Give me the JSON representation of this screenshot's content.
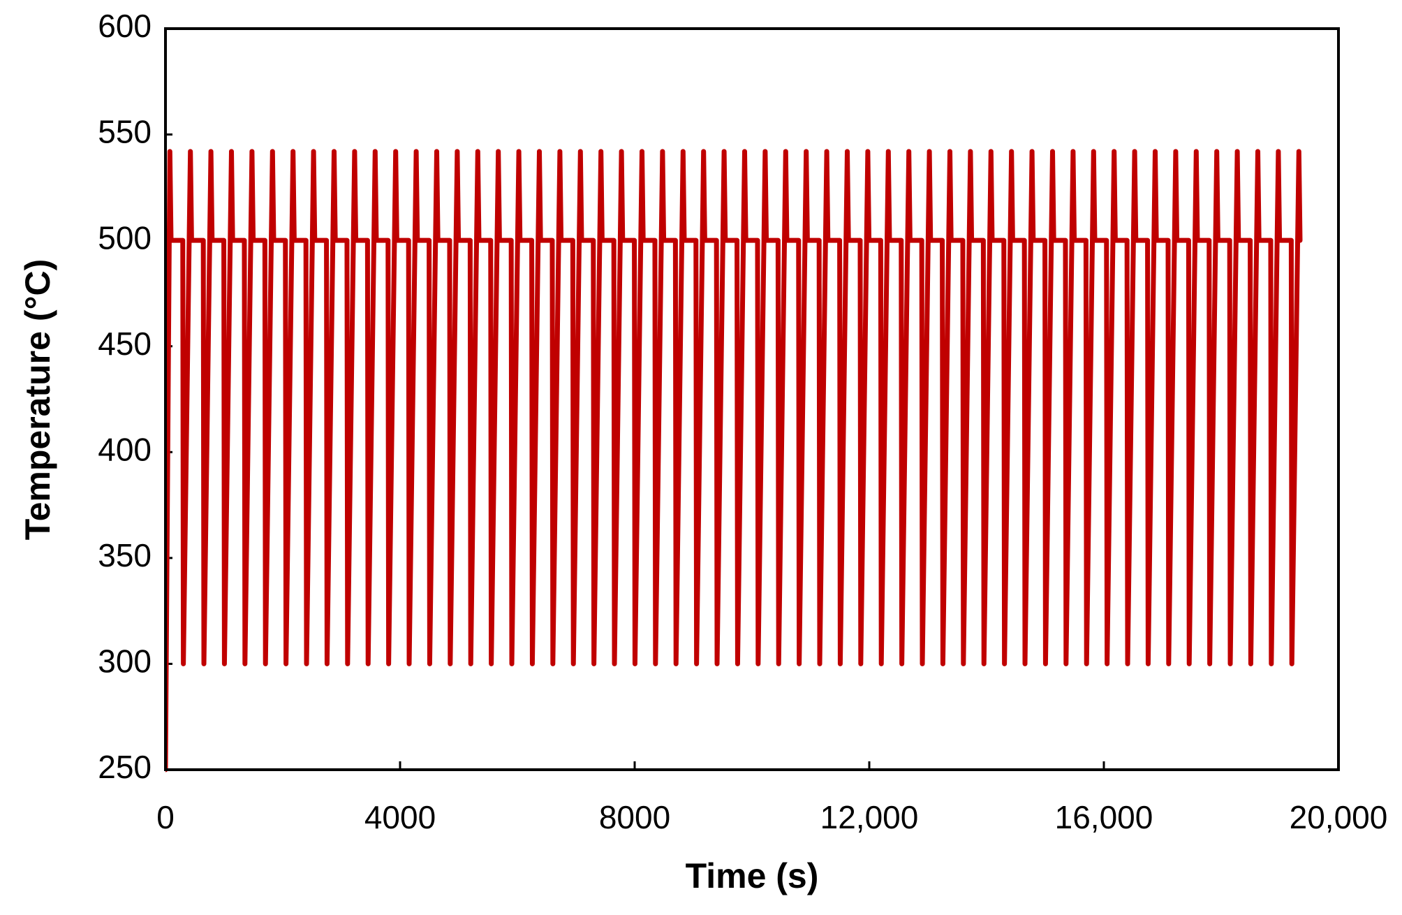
{
  "chart_data": {
    "type": "line",
    "xlabel": "Time (s)",
    "ylabel": "Temperature (°C)",
    "color": "#c00000",
    "xlim": [
      0,
      20000
    ],
    "ylim": [
      250,
      600
    ],
    "xticks": [
      0,
      4000,
      8000,
      {
        "value": 12000,
        "label": "12,000"
      },
      {
        "value": 16000,
        "label": "16,000"
      },
      {
        "value": 20000,
        "label": "20,000"
      }
    ],
    "yticks": [
      250,
      300,
      350,
      400,
      450,
      500,
      550,
      600
    ],
    "grid": false,
    "x": [
      0,
      75,
      95,
      295,
      305,
      425,
      445,
      645,
      655,
      775,
      795,
      995,
      1005,
      1125,
      1145,
      1345,
      1355,
      1475,
      1495,
      1695,
      1705,
      1825,
      1845,
      2045,
      2055,
      2175,
      2195,
      2395,
      2405,
      2525,
      2545,
      2745,
      2755,
      2875,
      2895,
      3095,
      3105,
      3225,
      3245,
      3445,
      3455,
      3575,
      3595,
      3795,
      3805,
      3925,
      3945,
      4145,
      4155,
      4275,
      4295,
      4495,
      4505,
      4625,
      4645,
      4845,
      4855,
      4975,
      4995,
      5195,
      5205,
      5325,
      5345,
      5545,
      5555,
      5675,
      5695,
      5895,
      5905,
      6025,
      6045,
      6245,
      6255,
      6375,
      6395,
      6595,
      6605,
      6725,
      6745,
      6945,
      6955,
      7075,
      7095,
      7295,
      7305,
      7425,
      7445,
      7645,
      7655,
      7775,
      7795,
      7995,
      8005,
      8125,
      8145,
      8345,
      8355,
      8475,
      8495,
      8695,
      8705,
      8825,
      8845,
      9045,
      9055,
      9175,
      9195,
      9395,
      9405,
      9525,
      9545,
      9745,
      9755,
      9875,
      9895,
      10095,
      10105,
      10225,
      10245,
      10445,
      10455,
      10575,
      10595,
      10795,
      10805,
      10925,
      10945,
      11145,
      11155,
      11275,
      11295,
      11495,
      11505,
      11625,
      11645,
      11845,
      11855,
      11975,
      11995,
      12195,
      12205,
      12325,
      12345,
      12545,
      12555,
      12675,
      12695,
      12895,
      12905,
      13025,
      13045,
      13245,
      13255,
      13375,
      13395,
      13595,
      13605,
      13725,
      13745,
      13945,
      13955,
      14075,
      14095,
      14295,
      14305,
      14425,
      14445,
      14645,
      14655,
      14775,
      14795,
      14995,
      15005,
      15125,
      15145,
      15345,
      15355,
      15475,
      15495,
      15695,
      15705,
      15825,
      15845,
      16045,
      16055,
      16175,
      16195,
      16395,
      16405,
      16525,
      16545,
      16745,
      16755,
      16875,
      16895,
      17095,
      17105,
      17225,
      17245,
      17445,
      17455,
      17575,
      17595,
      17795,
      17805,
      17925,
      17945,
      18145,
      18155,
      18275,
      18295,
      18495,
      18505,
      18625,
      18645,
      18845,
      18855,
      18975,
      18995,
      19195,
      19205,
      19325,
      19345
    ],
    "values": [
      250,
      542,
      500,
      500,
      300,
      542,
      500,
      500,
      300,
      542,
      500,
      500,
      300,
      542,
      500,
      500,
      300,
      542,
      500,
      500,
      300,
      542,
      500,
      500,
      300,
      542,
      500,
      500,
      300,
      542,
      500,
      500,
      300,
      542,
      500,
      500,
      300,
      542,
      500,
      500,
      300,
      542,
      500,
      500,
      300,
      542,
      500,
      500,
      300,
      542,
      500,
      500,
      300,
      542,
      500,
      500,
      300,
      542,
      500,
      500,
      300,
      542,
      500,
      500,
      300,
      542,
      500,
      500,
      300,
      542,
      500,
      500,
      300,
      542,
      500,
      500,
      300,
      542,
      500,
      500,
      300,
      542,
      500,
      500,
      300,
      542,
      500,
      500,
      300,
      542,
      500,
      500,
      300,
      542,
      500,
      500,
      300,
      542,
      500,
      500,
      300,
      542,
      500,
      500,
      300,
      542,
      500,
      500,
      300,
      542,
      500,
      500,
      300,
      542,
      500,
      500,
      300,
      542,
      500,
      500,
      300,
      542,
      500,
      500,
      300,
      542,
      500,
      500,
      300,
      542,
      500,
      500,
      300,
      542,
      500,
      500,
      300,
      542,
      500,
      500,
      300,
      542,
      500,
      500,
      300,
      542,
      500,
      500,
      300,
      542,
      500,
      500,
      300,
      542,
      500,
      500,
      300,
      542,
      500,
      500,
      300,
      542,
      500,
      500,
      300,
      542,
      500,
      500,
      300,
      542,
      500,
      500,
      300,
      542,
      500,
      500,
      300,
      542,
      500,
      500,
      300,
      542,
      500,
      500,
      300,
      542,
      500,
      500,
      300,
      542,
      500,
      500,
      300,
      542,
      500,
      500,
      300,
      542,
      500,
      500,
      300,
      542,
      500,
      500,
      300,
      542,
      500,
      500,
      300,
      542,
      500,
      500,
      300,
      542,
      500,
      500,
      300,
      542,
      500,
      500,
      300,
      542,
      500
    ]
  }
}
